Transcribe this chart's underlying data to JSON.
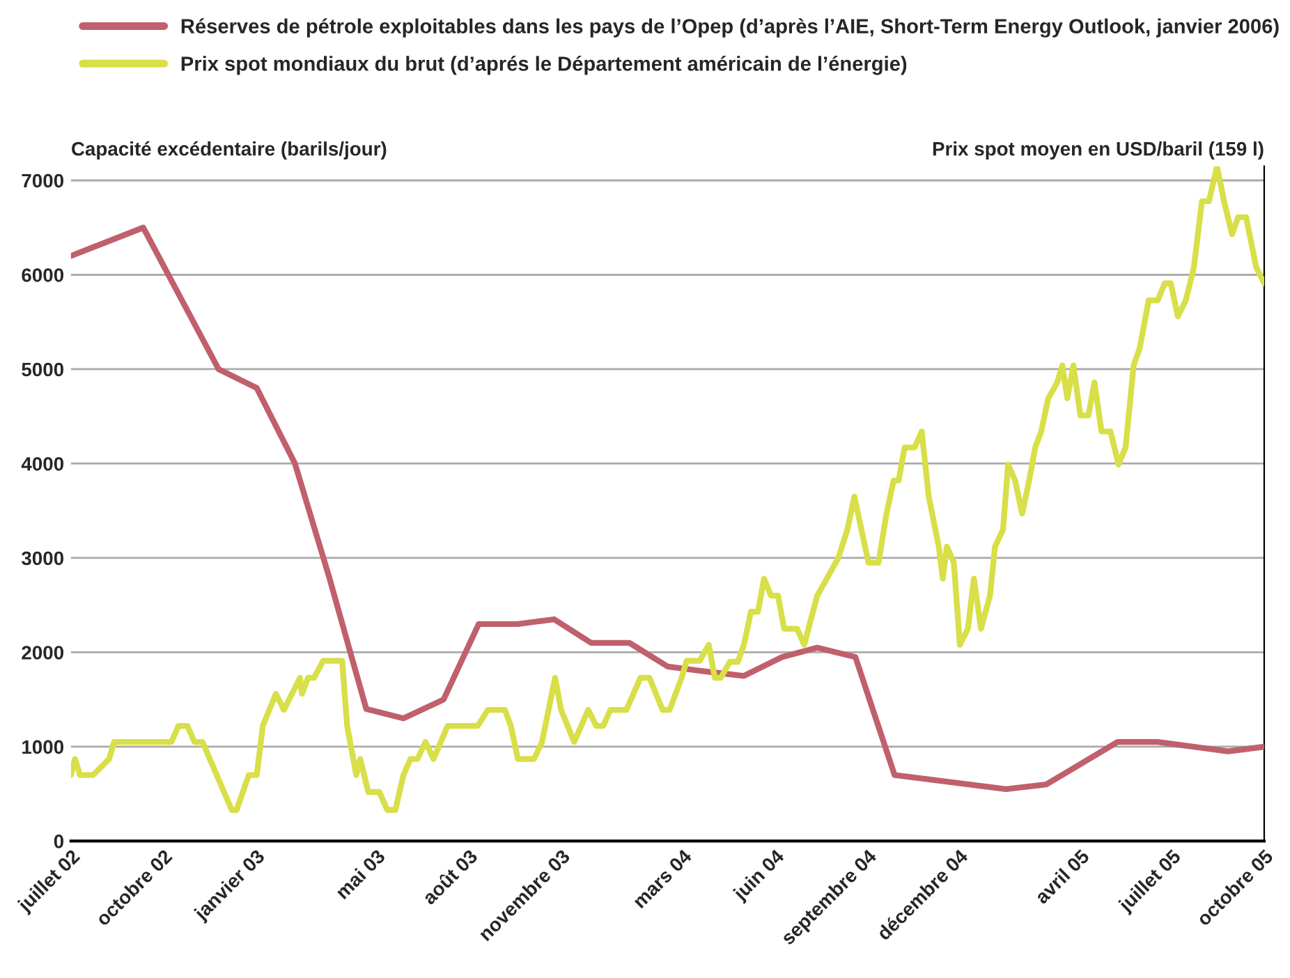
{
  "chart_data": {
    "type": "line",
    "ylabel": "Capacité excédentaire (barils/jour)",
    "y2label": "Prix spot moyen en USD/baril (159 l)",
    "xlim": [
      "2002-07-01",
      "2005-10-01"
    ],
    "xticks": [
      {
        "value": "2002-07-01",
        "label": "juillet 02"
      },
      {
        "value": "2002-10-01",
        "label": "octobre 02"
      },
      {
        "value": "2003-01-01",
        "label": "janvier 03"
      },
      {
        "value": "2003-05-01",
        "label": "mai 03"
      },
      {
        "value": "2003-08-01",
        "label": "août 03"
      },
      {
        "value": "2003-11-01",
        "label": "novembre 03"
      },
      {
        "value": "2004-03-01",
        "label": "mars 04"
      },
      {
        "value": "2004-06-01",
        "label": "juin 04"
      },
      {
        "value": "2004-09-01",
        "label": "septembre 04"
      },
      {
        "value": "2004-12-01",
        "label": "décembre 04"
      },
      {
        "value": "2005-04-01",
        "label": "avril 05"
      },
      {
        "value": "2005-07-01",
        "label": "juillet 05"
      },
      {
        "value": "2005-10-01",
        "label": "octobre 05"
      }
    ],
    "ylim": [
      0,
      7150
    ],
    "yticks": [
      0,
      1000,
      2000,
      3000,
      4000,
      5000,
      6000,
      7000
    ],
    "grid": "y",
    "legend": "top",
    "marker": "none",
    "line_style": "solid",
    "series": [
      {
        "name": "Réserves de pétrole exploitables dans les pays de l’Opep (d’après l’AIE, Short-Term Energy Outlook, janvier 2006)",
        "color": "#c0606c",
        "x": [
          "2002-07-01",
          "2002-09-11",
          "2002-11-25",
          "2003-01-02",
          "2003-02-09",
          "2003-03-15",
          "2003-04-21",
          "2003-05-28",
          "2003-07-07",
          "2003-08-11",
          "2003-09-19",
          "2003-10-25",
          "2003-12-01",
          "2004-01-08",
          "2004-02-15",
          "2004-03-22",
          "2004-05-01",
          "2004-06-08",
          "2004-07-13",
          "2004-08-20",
          "2004-09-28",
          "2005-01-17",
          "2005-02-26",
          "2005-05-08",
          "2005-06-17",
          "2005-08-26",
          "2005-10-01"
        ],
        "values": [
          6200,
          6500,
          5000,
          4800,
          4000,
          2800,
          1400,
          1300,
          1500,
          2300,
          2300,
          2350,
          2100,
          2100,
          1850,
          1800,
          1750,
          1950,
          2050,
          1950,
          700,
          550,
          600,
          1050,
          1050,
          950,
          1000
        ]
      },
      {
        "name": "Prix spot mondiaux du brut (d’aprés le Département américain de l’énergie)",
        "color": "#d8df48",
        "x": [
          "2002-07-01",
          "2002-07-05",
          "2002-07-10",
          "2002-07-23",
          "2002-08-08",
          "2002-08-13",
          "2002-09-04",
          "2002-10-09",
          "2002-10-16",
          "2002-10-25",
          "2002-11-01",
          "2002-11-09",
          "2002-12-08",
          "2002-12-13",
          "2002-12-25",
          "2003-01-02",
          "2003-01-08",
          "2003-01-21",
          "2003-01-29",
          "2003-02-14",
          "2003-02-16",
          "2003-02-22",
          "2003-02-28",
          "2003-03-09",
          "2003-03-28",
          "2003-04-02",
          "2003-04-11",
          "2003-04-15",
          "2003-04-23",
          "2003-05-04",
          "2003-05-12",
          "2003-05-20",
          "2003-05-28",
          "2003-06-04",
          "2003-06-11",
          "2003-06-19",
          "2003-06-27",
          "2003-07-11",
          "2003-08-10",
          "2003-08-20",
          "2003-09-06",
          "2003-09-12",
          "2003-09-19",
          "2003-10-05",
          "2003-10-13",
          "2003-10-26",
          "2003-11-01",
          "2003-11-14",
          "2003-11-28",
          "2003-12-06",
          "2003-12-13",
          "2003-12-20",
          "2004-01-05",
          "2004-01-19",
          "2004-01-28",
          "2004-02-10",
          "2004-02-17",
          "2004-02-29",
          "2004-03-05",
          "2004-03-18",
          "2004-03-27",
          "2004-04-02",
          "2004-04-08",
          "2004-04-17",
          "2004-04-25",
          "2004-05-01",
          "2004-05-08",
          "2004-05-15",
          "2004-05-21",
          "2004-05-28",
          "2004-06-04",
          "2004-06-10",
          "2004-06-23",
          "2004-06-30",
          "2004-07-13",
          "2004-08-03",
          "2004-08-12",
          "2004-08-19",
          "2004-09-02",
          "2004-09-12",
          "2004-09-20",
          "2004-09-27",
          "2004-10-02",
          "2004-10-08",
          "2004-10-18",
          "2004-10-25",
          "2004-11-01",
          "2004-11-11",
          "2004-11-15",
          "2004-11-19",
          "2004-11-26",
          "2004-12-02",
          "2004-12-10",
          "2004-12-16",
          "2004-12-23",
          "2005-01-01",
          "2005-01-06",
          "2005-01-14",
          "2005-01-19",
          "2005-01-26",
          "2005-02-02",
          "2005-02-09",
          "2005-02-15",
          "2005-02-21",
          "2005-02-28",
          "2005-03-09",
          "2005-03-14",
          "2005-03-19",
          "2005-03-25",
          "2005-04-01",
          "2005-04-09",
          "2005-04-15",
          "2005-04-22",
          "2005-05-01",
          "2005-05-09",
          "2005-05-16",
          "2005-05-24",
          "2005-05-30",
          "2005-06-08",
          "2005-06-17",
          "2005-06-24",
          "2005-06-30",
          "2005-07-07",
          "2005-07-15",
          "2005-07-23",
          "2005-07-31",
          "2005-08-07",
          "2005-08-15",
          "2005-08-22",
          "2005-08-30",
          "2005-09-05",
          "2005-09-13",
          "2005-09-23",
          "2005-10-01"
        ],
        "values": [
          700,
          870,
          700,
          700,
          870,
          1050,
          1050,
          1050,
          1220,
          1220,
          1050,
          1050,
          330,
          330,
          700,
          700,
          1220,
          1560,
          1390,
          1730,
          1560,
          1730,
          1730,
          1910,
          1910,
          1220,
          700,
          870,
          520,
          520,
          330,
          330,
          700,
          870,
          870,
          1050,
          870,
          1220,
          1220,
          1390,
          1390,
          1220,
          870,
          870,
          1050,
          1730,
          1390,
          1050,
          1390,
          1220,
          1220,
          1390,
          1390,
          1730,
          1730,
          1390,
          1390,
          1730,
          1910,
          1910,
          2080,
          1730,
          1730,
          1900,
          1900,
          2080,
          2430,
          2430,
          2780,
          2600,
          2600,
          2250,
          2250,
          2080,
          2600,
          3000,
          3300,
          3650,
          2950,
          2950,
          3470,
          3820,
          3820,
          4170,
          4170,
          4340,
          3650,
          3120,
          2780,
          3120,
          2950,
          2080,
          2250,
          2780,
          2250,
          2600,
          3120,
          3300,
          3990,
          3820,
          3470,
          3820,
          4170,
          4340,
          4690,
          4860,
          5040,
          4690,
          5040,
          4510,
          4510,
          4860,
          4340,
          4340,
          3990,
          4170,
          5040,
          5220,
          5730,
          5730,
          5910,
          5910,
          5560,
          5730,
          6080,
          6780,
          6780,
          7150,
          6780,
          6430,
          6610,
          6610,
          6080,
          5910
        ]
      }
    ]
  }
}
